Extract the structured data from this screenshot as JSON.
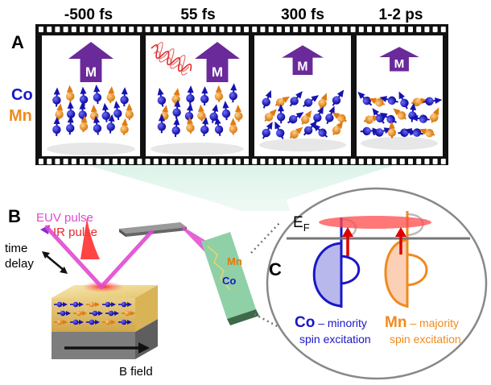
{
  "panel_a": {
    "letter": "A",
    "time_labels": [
      "-500 fs",
      "55 fs",
      "300 fs",
      "1-2 ps"
    ],
    "species": {
      "co": "Co",
      "mn": "Mn"
    },
    "magnetization_label": "M",
    "magnetization_level": [
      1.0,
      1.0,
      0.7,
      0.55
    ]
  },
  "panel_b": {
    "letter": "B",
    "euv_pulse": "EUV pulse",
    "ir_pulse": "IR pulse",
    "time_delay_line1": "time",
    "time_delay_line2": "delay",
    "b_field": "B field",
    "detector_mn": "Mn",
    "detector_co": "Co"
  },
  "panel_c": {
    "letter": "C",
    "fermi_level": "E",
    "fermi_sub": "F",
    "co_label": "Co",
    "co_line1": " – minority",
    "co_line2": "spin excitation",
    "mn_label": "Mn",
    "mn_line1": " – majority",
    "mn_line2": "spin excitation"
  },
  "colors": {
    "co": "#1a16c8",
    "mn": "#f08a1e",
    "magnetization": "#6a2a9a",
    "euv": "#e04ad0",
    "ir": "#e02a2a",
    "film_strip": "#111111"
  }
}
